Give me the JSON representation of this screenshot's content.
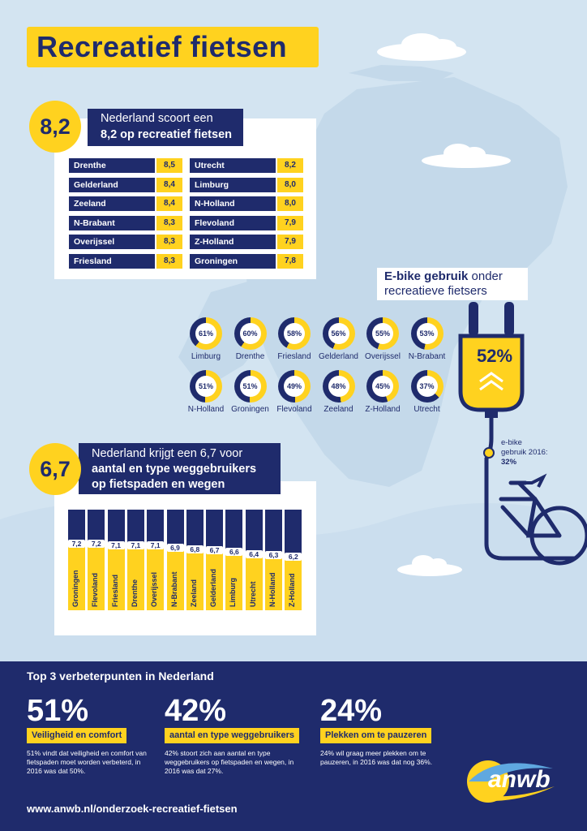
{
  "title": "Recreatief fietsen",
  "score1": {
    "value": "8,2",
    "line1": "Nederland scoort een",
    "line2": "8,2 op recreatief fietsen",
    "left": [
      {
        "name": "Drenthe",
        "score": "8,5"
      },
      {
        "name": "Gelderland",
        "score": "8,4"
      },
      {
        "name": "Zeeland",
        "score": "8,4"
      },
      {
        "name": "N-Brabant",
        "score": "8,3"
      },
      {
        "name": "Overijssel",
        "score": "8,3"
      },
      {
        "name": "Friesland",
        "score": "8,3"
      }
    ],
    "right": [
      {
        "name": "Utrecht",
        "score": "8,2"
      },
      {
        "name": "Limburg",
        "score": "8,0"
      },
      {
        "name": "N-Holland",
        "score": "8,0"
      },
      {
        "name": "Flevoland",
        "score": "7,9"
      },
      {
        "name": "Z-Holland",
        "score": "7,9"
      },
      {
        "name": "Groningen",
        "score": "7,8"
      }
    ]
  },
  "ebike": {
    "heading_bold": "E-bike gebruik",
    "heading_rest": " onder",
    "heading_line2": "recreatieve fietsers",
    "total": "52%",
    "prev_label_1": "e-bike",
    "prev_label_2": "gebruik 2016:",
    "prev_value": "32%",
    "provinces": [
      {
        "name": "Limburg",
        "label": "61%",
        "pct": 61
      },
      {
        "name": "Drenthe",
        "label": "60%",
        "pct": 60
      },
      {
        "name": "Friesland",
        "label": "58%",
        "pct": 58
      },
      {
        "name": "Gelderland",
        "label": "56%",
        "pct": 56
      },
      {
        "name": "Overijssel",
        "label": "55%",
        "pct": 55
      },
      {
        "name": "N-Brabant",
        "label": "53%",
        "pct": 53
      },
      {
        "name": "N-Holland",
        "label": "51%",
        "pct": 51
      },
      {
        "name": "Groningen",
        "label": "51%",
        "pct": 51
      },
      {
        "name": "Flevoland",
        "label": "49%",
        "pct": 49
      },
      {
        "name": "Zeeland",
        "label": "48%",
        "pct": 48
      },
      {
        "name": "Z-Holland",
        "label": "45%",
        "pct": 45
      },
      {
        "name": "Utrecht",
        "label": "37%",
        "pct": 37
      }
    ],
    "colors": {
      "fill": "#ffd21f",
      "rest": "#1f2b6c"
    }
  },
  "score2": {
    "value": "6,7",
    "line1": "Nederland krijgt een 6,7 voor",
    "line2": "aantal en type weggebruikers",
    "line3": "op fietspaden en wegen"
  },
  "chart_data": {
    "type": "bar",
    "categories": [
      "Groningen",
      "Flevoland",
      "Friesland",
      "Drenthe",
      "Overijssel",
      "N-Brabant",
      "Zeeland",
      "Gelderland",
      "Limburg",
      "Utrecht",
      "N-Holland",
      "Z-Holland"
    ],
    "value_labels": [
      "7,2",
      "7,2",
      "7,1",
      "7,1",
      "7,1",
      "6,9",
      "6,8",
      "6,7",
      "6,6",
      "6,4",
      "6,3",
      "6,2"
    ],
    "values": [
      7.2,
      7.2,
      7.1,
      7.1,
      7.1,
      6.9,
      6.8,
      6.7,
      6.6,
      6.4,
      6.3,
      6.2
    ],
    "ylim": [
      0,
      10
    ]
  },
  "footer": {
    "heading": "Top 3 verbeterpunten in Nederland",
    "items": [
      {
        "pct": "51%",
        "tag": "Veiligheid en comfort",
        "desc": "51% vindt dat veiligheid en comfort van fietspaden moet worden verbeterd, in 2016 was dat 50%."
      },
      {
        "pct": "42%",
        "tag": "aantal en type weggebruikers",
        "desc": "42% stoort zich aan aantal en type weggebruikers op fietspaden en wegen, in 2016 was dat 27%."
      },
      {
        "pct": "24%",
        "tag": "Plekken om te pauzeren",
        "desc": "24% wil graag meer plekken om te pauzeren, in 2016 was dat nog 36%."
      }
    ],
    "url": "www.anwb.nl/onderzoek-recreatief-fietsen",
    "logo_text": "anwb"
  }
}
